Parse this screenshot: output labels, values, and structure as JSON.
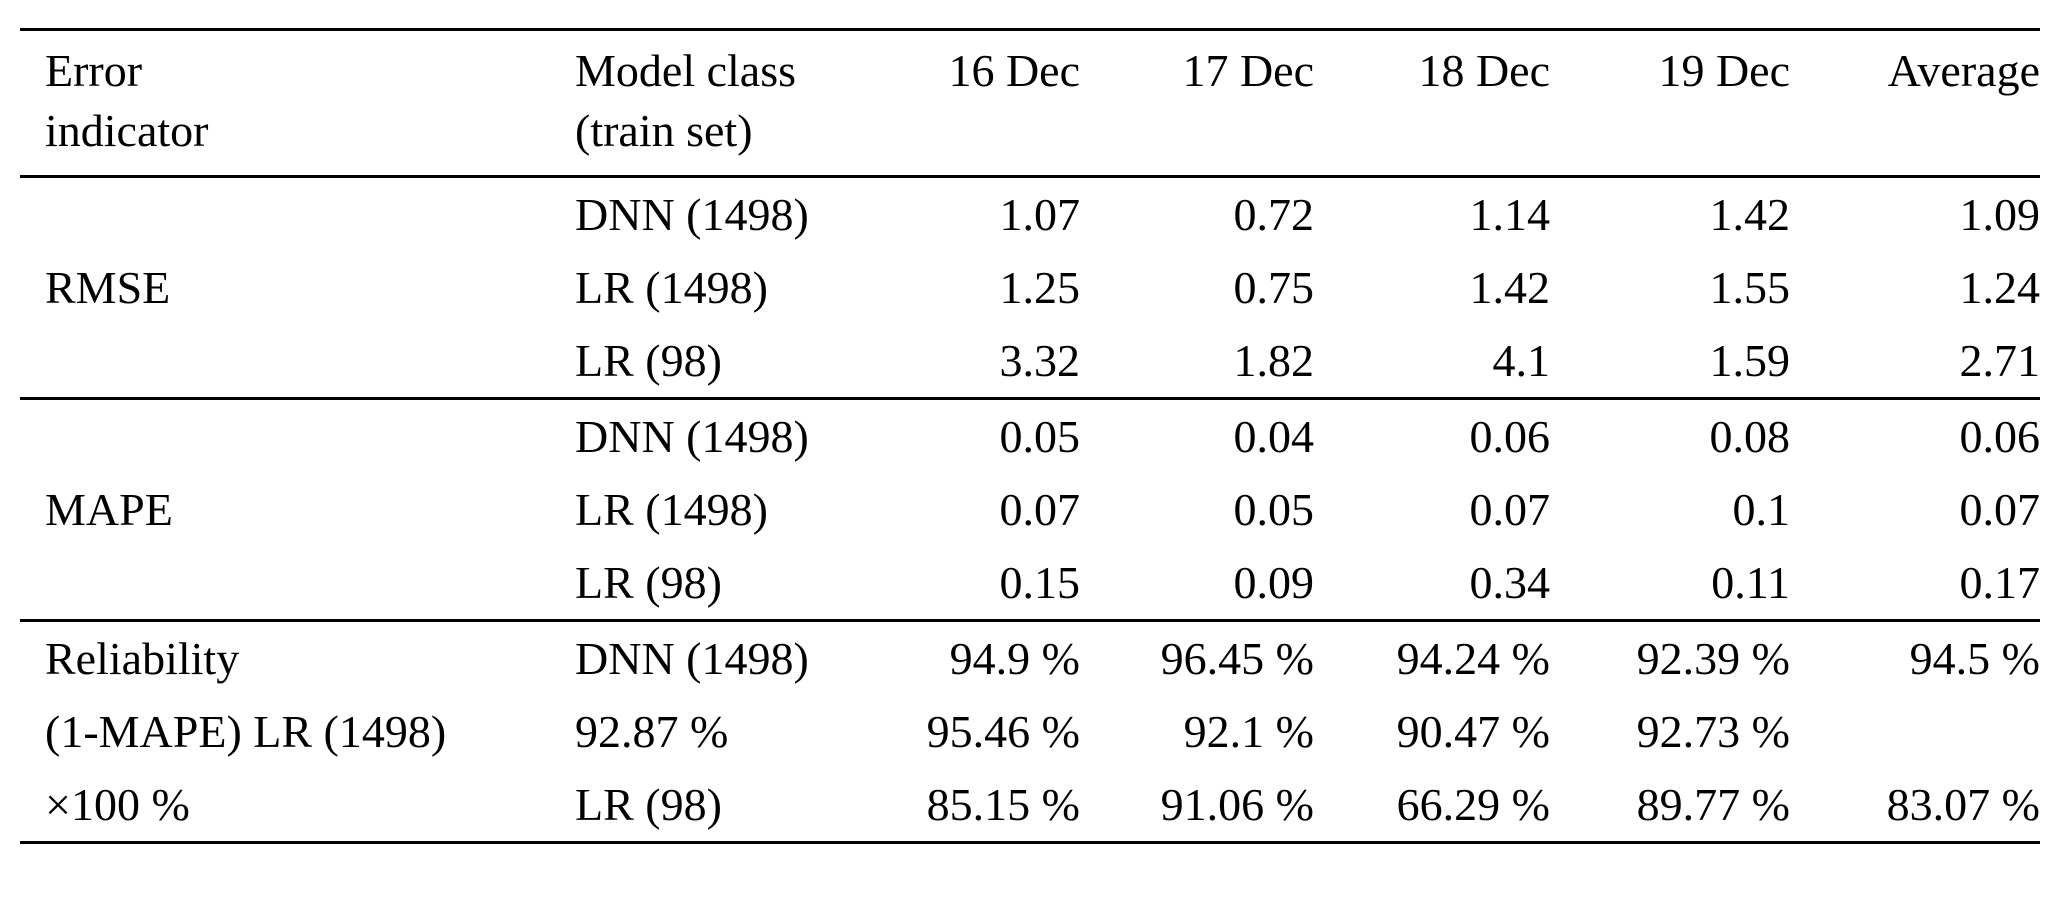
{
  "table": {
    "header": {
      "indicator": {
        "line1": "Error",
        "line2": "indicator"
      },
      "model": {
        "line1": "Model class",
        "line2": "(train set)"
      },
      "dates": [
        "16 Dec",
        "17 Dec",
        "18 Dec",
        "19 Dec",
        "Average"
      ]
    },
    "sections": [
      {
        "rows": [
          {
            "label": "",
            "model": "DNN (1498)",
            "values": [
              "1.07",
              "0.72",
              "1.14",
              "1.42",
              "1.09"
            ]
          },
          {
            "label": "RMSE",
            "model": "LR (1498)",
            "values": [
              "1.25",
              "0.75",
              "1.42",
              "1.55",
              "1.24"
            ]
          },
          {
            "label": "",
            "model": "LR (98)",
            "values": [
              "3.32",
              "1.82",
              "4.1",
              "1.59",
              "2.71"
            ]
          }
        ]
      },
      {
        "rows": [
          {
            "label": "",
            "model": "DNN (1498)",
            "values": [
              "0.05",
              "0.04",
              "0.06",
              "0.08",
              "0.06"
            ]
          },
          {
            "label": "MAPE",
            "model": "LR (1498)",
            "values": [
              "0.07",
              "0.05",
              "0.07",
              "0.1",
              "0.07"
            ]
          },
          {
            "label": "",
            "model": "LR (98)",
            "values": [
              "0.15",
              "0.09",
              "0.34",
              "0.11",
              "0.17"
            ]
          }
        ]
      },
      {
        "rows": [
          {
            "label": "Reliability",
            "model": "DNN (1498)",
            "values": [
              "94.9 %",
              "96.45 %",
              "94.24 %",
              "92.39 %",
              "94.5 %"
            ]
          },
          {
            "label": "(1-MAPE) LR (1498)",
            "model": "92.87 %",
            "values": [
              "95.46 %",
              "92.1 %",
              "90.47 %",
              "92.73 %",
              ""
            ]
          },
          {
            "label": "×100 %",
            "model": "LR (98)",
            "values": [
              "85.15 %",
              "91.06 %",
              "66.29 %",
              "89.77 %",
              "83.07 %"
            ]
          }
        ]
      }
    ]
  },
  "chart_data": {
    "type": "table",
    "columns": [
      "Error indicator",
      "Model class (train set)",
      "16 Dec",
      "17 Dec",
      "18 Dec",
      "19 Dec",
      "Average"
    ],
    "rows": [
      [
        "RMSE",
        "DNN (1498)",
        1.07,
        0.72,
        1.14,
        1.42,
        1.09
      ],
      [
        "RMSE",
        "LR (1498)",
        1.25,
        0.75,
        1.42,
        1.55,
        1.24
      ],
      [
        "RMSE",
        "LR (98)",
        3.32,
        1.82,
        4.1,
        1.59,
        2.71
      ],
      [
        "MAPE",
        "DNN (1498)",
        0.05,
        0.04,
        0.06,
        0.08,
        0.06
      ],
      [
        "MAPE",
        "LR (1498)",
        0.07,
        0.05,
        0.07,
        0.1,
        0.07
      ],
      [
        "MAPE",
        "LR (98)",
        0.15,
        0.09,
        0.34,
        0.11,
        0.17
      ],
      [
        "Reliability (1-MAPE) ×100 %",
        "DNN (1498)",
        "94.9 %",
        "96.45 %",
        "94.24 %",
        "92.39 %",
        "94.5 %"
      ],
      [
        "Reliability (1-MAPE) ×100 %",
        "LR (1498)",
        "92.87 %",
        "95.46 %",
        "92.1 %",
        "90.47 %",
        "92.73 %"
      ],
      [
        "Reliability (1-MAPE) ×100 %",
        "LR (98)",
        "85.15 %",
        "91.06 %",
        "66.29 %",
        "89.77 %",
        "83.07 %"
      ]
    ]
  }
}
